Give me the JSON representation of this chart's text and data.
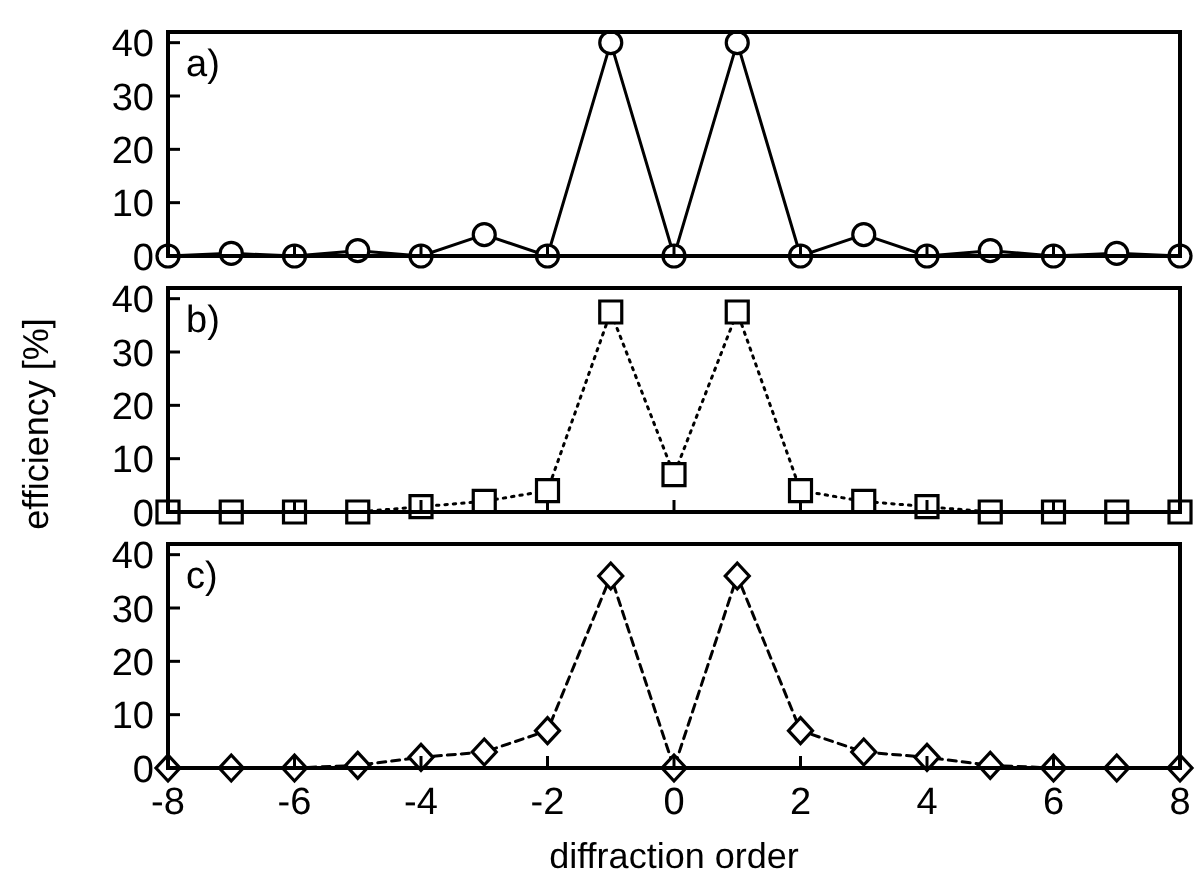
{
  "chart_data": [
    {
      "type": "line",
      "title": "a)",
      "x": [
        -8,
        -7,
        -6,
        -5,
        -4,
        -3,
        -2,
        -1,
        0,
        1,
        2,
        3,
        4,
        5,
        6,
        7,
        8
      ],
      "values": [
        0,
        0.5,
        0,
        1,
        0,
        4,
        0,
        40,
        0,
        40,
        0,
        4,
        0,
        1,
        0,
        0.5,
        0
      ],
      "color": "#000000",
      "marker": "circle",
      "line_style": "solid",
      "xlim": [
        -8,
        8
      ],
      "xticks": [
        -8,
        -6,
        -4,
        -2,
        0,
        2,
        4,
        6,
        8
      ],
      "ylim": [
        0,
        42
      ],
      "yticks": [
        0,
        10,
        20,
        30,
        40
      ],
      "tick_labels": "y"
    },
    {
      "type": "line",
      "title": "b)",
      "ylabel": "efficiency [%]",
      "x": [
        -8,
        -7,
        -6,
        -5,
        -4,
        -3,
        -2,
        -1,
        0,
        1,
        2,
        3,
        4,
        5,
        6,
        7,
        8
      ],
      "values": [
        0,
        0,
        0,
        0,
        1,
        2,
        4,
        37.5,
        7,
        37.5,
        4,
        2,
        1,
        0,
        0,
        0,
        0
      ],
      "color": "#000000",
      "marker": "square",
      "line_style": "dotted",
      "xlim": [
        -8,
        8
      ],
      "xticks": [
        -8,
        -6,
        -4,
        -2,
        0,
        2,
        4,
        6,
        8
      ],
      "ylim": [
        0,
        42
      ],
      "yticks": [
        0,
        10,
        20,
        30,
        40
      ],
      "tick_labels": "y"
    },
    {
      "type": "line",
      "title": "c)",
      "xlabel": "diffraction order",
      "x": [
        -8,
        -7,
        -6,
        -5,
        -4,
        -3,
        -2,
        -1,
        0,
        1,
        2,
        3,
        4,
        5,
        6,
        7,
        8
      ],
      "values": [
        0,
        0,
        0,
        0.5,
        2,
        3,
        7,
        36,
        0,
        36,
        7,
        3,
        2,
        0.5,
        0,
        0,
        0
      ],
      "color": "#000000",
      "marker": "diamond",
      "line_style": "dashed",
      "xlim": [
        -8,
        8
      ],
      "xticks": [
        -8,
        -6,
        -4,
        -2,
        0,
        2,
        4,
        6,
        8
      ],
      "ylim": [
        0,
        42
      ],
      "yticks": [
        0,
        10,
        20,
        30,
        40
      ]
    }
  ]
}
